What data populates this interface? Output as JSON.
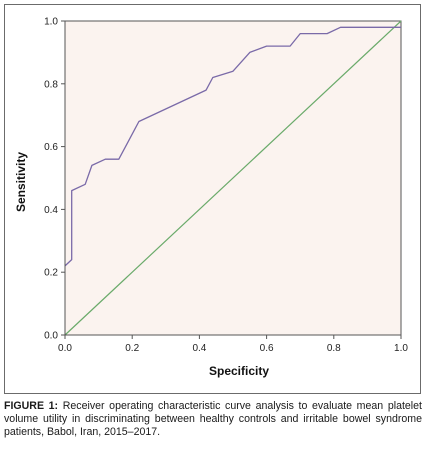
{
  "figure": {
    "caption_lead": "FIGURE 1:",
    "caption_text": " Receiver operating characteristic curve analysis to evaluate mean platelet volume utility in discriminating between healthy controls and irritable bowel syndrome patients, Babol, Iran, 2015–2017."
  },
  "colors": {
    "plot_background": "#fbf3ef",
    "roc_curve": "#7a6aa8",
    "reference_line": "#6aaa6a",
    "axis": "#555555"
  },
  "chart_data": {
    "type": "line",
    "title": "",
    "xlabel": "Specificity",
    "ylabel": "Sensitivity",
    "xlim": [
      0,
      1
    ],
    "ylim": [
      0,
      1
    ],
    "x_ticks": [
      "0.0",
      "0.2",
      "0.4",
      "0.6",
      "0.8",
      "1.0"
    ],
    "y_ticks": [
      "0.0",
      "0.2",
      "0.4",
      "0.6",
      "0.8",
      "1.0"
    ],
    "grid": false,
    "legend": "none",
    "series": [
      {
        "x": [
          0,
          0.02,
          0.02,
          0.06,
          0.08,
          0.12,
          0.16,
          0.22,
          0.42,
          0.44,
          0.5,
          0.55,
          0.6,
          0.67,
          0.7,
          0.78,
          0.82,
          1.0
        ],
        "y": [
          0.22,
          0.24,
          0.46,
          0.48,
          0.54,
          0.56,
          0.56,
          0.68,
          0.78,
          0.82,
          0.84,
          0.9,
          0.92,
          0.92,
          0.96,
          0.96,
          0.98,
          0.98
        ]
      },
      {
        "x": [
          0,
          1
        ],
        "y": [
          0,
          1
        ]
      }
    ]
  }
}
